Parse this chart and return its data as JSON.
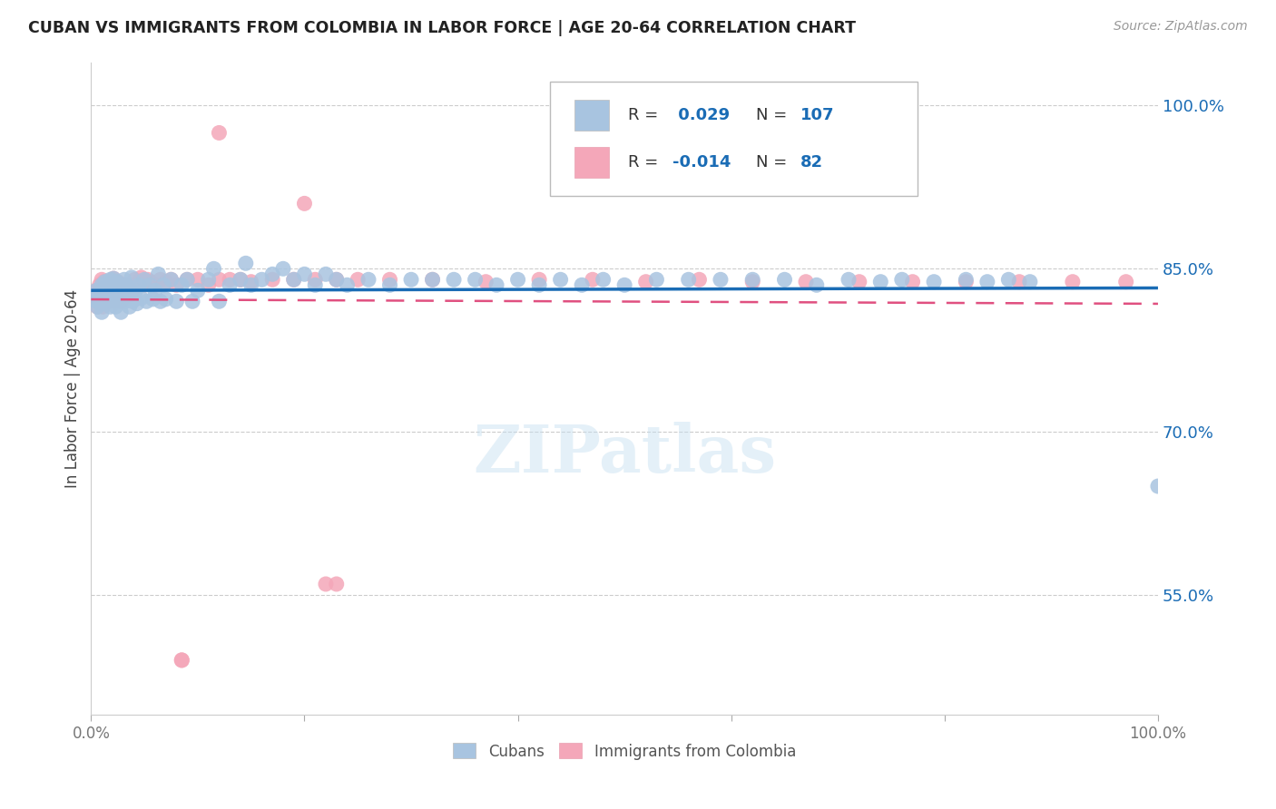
{
  "title": "CUBAN VS IMMIGRANTS FROM COLOMBIA IN LABOR FORCE | AGE 20-64 CORRELATION CHART",
  "source": "Source: ZipAtlas.com",
  "ylabel": "In Labor Force | Age 20-64",
  "xlim": [
    0.0,
    1.0
  ],
  "ylim": [
    0.44,
    1.04
  ],
  "ytick_vals": [
    0.55,
    0.7,
    0.85,
    1.0
  ],
  "xtick_vals": [
    0.0,
    0.2,
    0.4,
    0.6,
    0.8,
    1.0
  ],
  "cubans_R": 0.029,
  "cubans_N": 107,
  "colombia_R": -0.014,
  "colombia_N": 82,
  "cubans_color": "#a8c4e0",
  "colombia_color": "#f4a7b9",
  "cubans_line_color": "#1a6cb5",
  "colombia_line_color": "#e05080",
  "legend_label_cubans": "Cubans",
  "legend_label_colombia": "Immigrants from Colombia",
  "cubans_x": [
    0.005,
    0.005,
    0.005,
    0.006,
    0.007,
    0.008,
    0.009,
    0.01,
    0.01,
    0.011,
    0.012,
    0.013,
    0.014,
    0.015,
    0.016,
    0.017,
    0.018,
    0.018,
    0.019,
    0.02,
    0.02,
    0.021,
    0.022,
    0.022,
    0.023,
    0.023,
    0.024,
    0.025,
    0.025,
    0.026,
    0.027,
    0.028,
    0.029,
    0.03,
    0.031,
    0.032,
    0.033,
    0.034,
    0.035,
    0.036,
    0.037,
    0.038,
    0.039,
    0.04,
    0.042,
    0.043,
    0.045,
    0.047,
    0.05,
    0.052,
    0.055,
    0.058,
    0.06,
    0.063,
    0.065,
    0.068,
    0.07,
    0.075,
    0.08,
    0.085,
    0.09,
    0.095,
    0.1,
    0.11,
    0.115,
    0.12,
    0.13,
    0.14,
    0.145,
    0.15,
    0.16,
    0.17,
    0.18,
    0.19,
    0.2,
    0.21,
    0.22,
    0.23,
    0.24,
    0.26,
    0.28,
    0.3,
    0.32,
    0.34,
    0.36,
    0.38,
    0.4,
    0.42,
    0.44,
    0.46,
    0.48,
    0.5,
    0.53,
    0.56,
    0.59,
    0.62,
    0.65,
    0.68,
    0.71,
    0.74,
    0.76,
    0.79,
    0.82,
    0.84,
    0.86,
    0.88,
    1.0
  ],
  "cubans_y": [
    0.82,
    0.83,
    0.825,
    0.815,
    0.822,
    0.828,
    0.818,
    0.835,
    0.81,
    0.826,
    0.832,
    0.838,
    0.819,
    0.825,
    0.831,
    0.82,
    0.815,
    0.84,
    0.823,
    0.829,
    0.835,
    0.841,
    0.82,
    0.826,
    0.832,
    0.815,
    0.838,
    0.824,
    0.83,
    0.836,
    0.82,
    0.81,
    0.825,
    0.83,
    0.84,
    0.82,
    0.835,
    0.828,
    0.822,
    0.815,
    0.83,
    0.842,
    0.82,
    0.825,
    0.83,
    0.818,
    0.835,
    0.823,
    0.84,
    0.82,
    0.835,
    0.822,
    0.83,
    0.845,
    0.82,
    0.835,
    0.822,
    0.84,
    0.82,
    0.835,
    0.84,
    0.82,
    0.83,
    0.84,
    0.85,
    0.82,
    0.835,
    0.84,
    0.855,
    0.835,
    0.84,
    0.845,
    0.85,
    0.84,
    0.845,
    0.835,
    0.845,
    0.84,
    0.835,
    0.84,
    0.835,
    0.84,
    0.84,
    0.84,
    0.84,
    0.835,
    0.84,
    0.835,
    0.84,
    0.835,
    0.84,
    0.835,
    0.84,
    0.84,
    0.84,
    0.84,
    0.84,
    0.835,
    0.84,
    0.838,
    0.84,
    0.838,
    0.84,
    0.838,
    0.84,
    0.838,
    0.65
  ],
  "colombia_x": [
    0.004,
    0.005,
    0.005,
    0.006,
    0.007,
    0.007,
    0.008,
    0.009,
    0.01,
    0.01,
    0.011,
    0.011,
    0.012,
    0.013,
    0.014,
    0.015,
    0.016,
    0.017,
    0.018,
    0.019,
    0.02,
    0.02,
    0.021,
    0.022,
    0.023,
    0.024,
    0.025,
    0.026,
    0.027,
    0.028,
    0.029,
    0.03,
    0.032,
    0.033,
    0.035,
    0.037,
    0.039,
    0.041,
    0.043,
    0.045,
    0.047,
    0.05,
    0.053,
    0.056,
    0.06,
    0.065,
    0.07,
    0.075,
    0.08,
    0.09,
    0.1,
    0.11,
    0.12,
    0.13,
    0.14,
    0.15,
    0.17,
    0.19,
    0.21,
    0.23,
    0.25,
    0.28,
    0.32,
    0.37,
    0.42,
    0.47,
    0.52,
    0.57,
    0.62,
    0.67,
    0.72,
    0.77,
    0.82,
    0.87,
    0.92,
    0.97,
    0.12,
    0.2,
    0.085,
    0.22,
    0.085,
    0.23
  ],
  "colombia_y": [
    0.825,
    0.82,
    0.83,
    0.815,
    0.822,
    0.828,
    0.835,
    0.819,
    0.84,
    0.826,
    0.832,
    0.815,
    0.838,
    0.824,
    0.83,
    0.836,
    0.82,
    0.826,
    0.825,
    0.835,
    0.829,
    0.835,
    0.841,
    0.82,
    0.826,
    0.832,
    0.838,
    0.824,
    0.83,
    0.82,
    0.828,
    0.825,
    0.835,
    0.828,
    0.825,
    0.835,
    0.83,
    0.84,
    0.835,
    0.838,
    0.842,
    0.835,
    0.84,
    0.838,
    0.835,
    0.84,
    0.838,
    0.84,
    0.835,
    0.84,
    0.84,
    0.835,
    0.84,
    0.84,
    0.84,
    0.838,
    0.84,
    0.84,
    0.84,
    0.84,
    0.84,
    0.84,
    0.84,
    0.838,
    0.84,
    0.84,
    0.838,
    0.84,
    0.838,
    0.838,
    0.838,
    0.838,
    0.838,
    0.838,
    0.838,
    0.838,
    0.975,
    0.91,
    0.49,
    0.56,
    0.49,
    0.56
  ]
}
